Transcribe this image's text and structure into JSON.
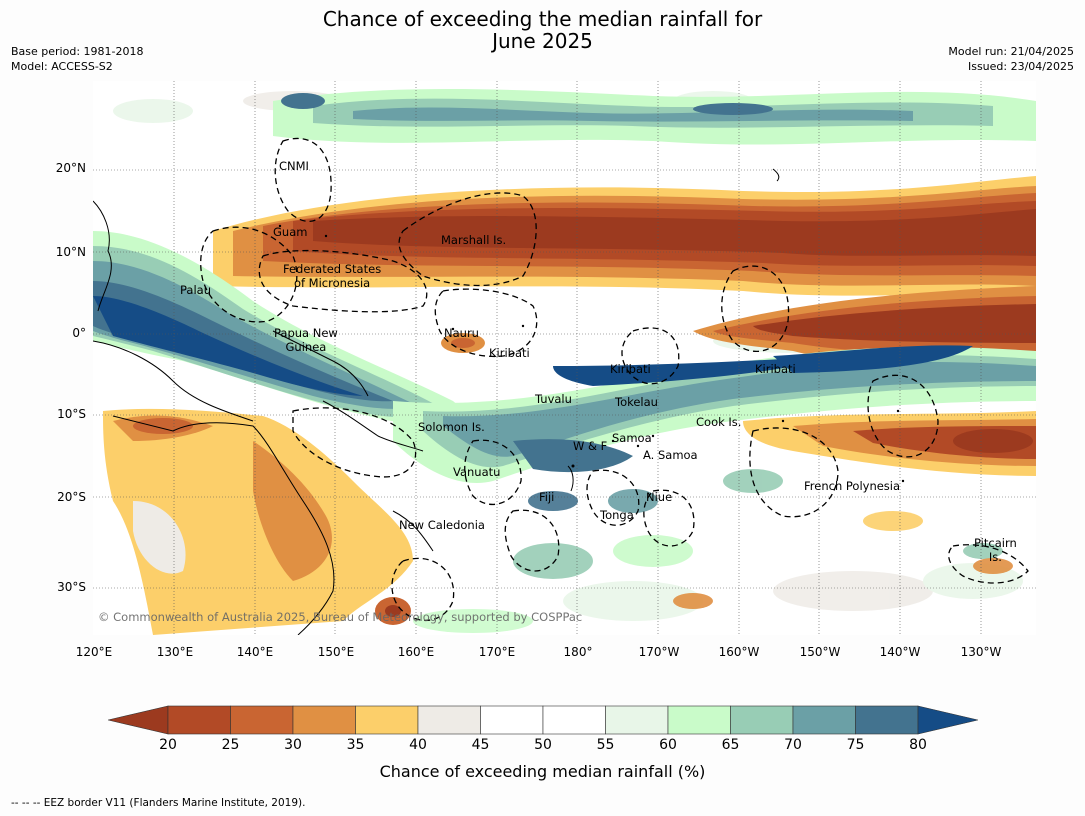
{
  "title_line1": "Chance of exceeding the median rainfall for",
  "title_line2": "June 2025",
  "meta_left": {
    "base_period": "Base period: 1981-2018",
    "model": "Model: ACCESS-S2"
  },
  "meta_right": {
    "model_run": "Model run: 21/04/2025",
    "issued": "Issued: 23/04/2025"
  },
  "lat_labels": [
    "20°N",
    "10°N",
    "0°",
    "10°S",
    "20°S",
    "30°S"
  ],
  "lon_labels": [
    "120°E",
    "130°E",
    "140°E",
    "150°E",
    "160°E",
    "170°E",
    "180°",
    "170°W",
    "160°W",
    "150°W",
    "140°W",
    "130°W"
  ],
  "places": {
    "cnmi": "CNMI",
    "guam": "Guam",
    "marshall": "Marshall Is.",
    "fsm_1": "Federated States",
    "fsm_2": "of Micronesia",
    "palau": "Palau",
    "png_1": "Papua New",
    "png_2": "Guinea",
    "nauru": "Nauru",
    "kiribati_w": "Kiribati",
    "kiribati_c": "Kiribati",
    "kiribati_e": "Kiribati",
    "tuvalu": "Tuvalu",
    "tokelau": "Tokelau",
    "solomon": "Solomon Is.",
    "samoa": "Samoa",
    "wf": "W & F",
    "asamoa": "A. Samoa",
    "cook": "Cook Is.",
    "vanuatu": "Vanuatu",
    "fiji": "Fiji",
    "niue": "Niue",
    "tonga": "Tonga",
    "newcal": "New Caledonia",
    "frenchpoly": "French Polynesia",
    "pitcairn_1": "Pitcairn",
    "pitcairn_2": "Is."
  },
  "copyright": "© Commonwealth of Australia 2025, Bureau of Meteorology, supported by COSPPac",
  "colorbar": {
    "label": "Chance of exceeding median rainfall (%)",
    "ticks": [
      "20",
      "25",
      "30",
      "35",
      "40",
      "45",
      "50",
      "55",
      "60",
      "65",
      "70",
      "75",
      "80"
    ],
    "colors": [
      "#9c3a1f",
      "#b24a26",
      "#c96532",
      "#e09043",
      "#fccf6a",
      "#eeebe6",
      "#ffffff",
      "#ffffff",
      "#e8f6e8",
      "#c9fbc9",
      "#98cdb5",
      "#6ba0a6",
      "#43738f",
      "#154c86"
    ]
  },
  "footer": "--  --  -- EEZ border V11 (Flanders Marine Institute, 2019)."
}
